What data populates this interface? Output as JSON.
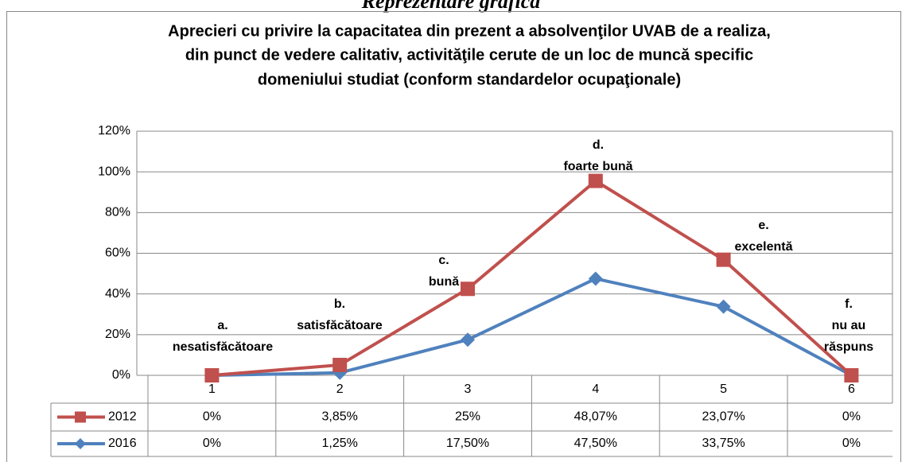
{
  "heading": "Reprezentare grafică",
  "chart_data": {
    "type": "line",
    "stacked": true,
    "title": [
      "Aprecieri cu privire la capacitatea din prezent a absolvenţilor UVAB de a realiza,",
      "din punct de vedere calitativ, activităţile cerute de un loc de muncă specific",
      "domeniului studiat (conform standardelor ocupaţionale)"
    ],
    "categories": [
      "1",
      "2",
      "3",
      "4",
      "5",
      "6"
    ],
    "annotations": [
      [
        "a.",
        "nesatisfăcătoare"
      ],
      [
        "b.",
        "satisfăcătoare"
      ],
      [
        "c.",
        "bună"
      ],
      [
        "d.",
        "foarte bună"
      ],
      [
        "e.",
        "excelentă"
      ],
      [
        "f.",
        "nu au",
        "răspuns"
      ]
    ],
    "series": [
      {
        "name": "2012",
        "color": "#c0504d",
        "marker": "square",
        "values": [
          0,
          3.85,
          25,
          48.07,
          23.07,
          0
        ],
        "value_labels": [
          "0%",
          "3,85%",
          "25%",
          "48,07%",
          "23,07%",
          "0%"
        ]
      },
      {
        "name": "2016",
        "color": "#4f81bd",
        "marker": "diamond",
        "values": [
          0,
          1.25,
          17.5,
          47.5,
          33.75,
          0
        ],
        "value_labels": [
          "0%",
          "1,25%",
          "17,50%",
          "47,50%",
          "33,75%",
          "0%"
        ]
      }
    ],
    "ylim": [
      0,
      120
    ],
    "yticks": [
      {
        "value": 0,
        "label": "0%"
      },
      {
        "value": 20,
        "label": "20%"
      },
      {
        "value": 40,
        "label": "40%"
      },
      {
        "value": 60,
        "label": "60%"
      },
      {
        "value": 80,
        "label": "80%"
      },
      {
        "value": 100,
        "label": "100%"
      },
      {
        "value": 120,
        "label": "120%"
      }
    ],
    "grid": true
  }
}
